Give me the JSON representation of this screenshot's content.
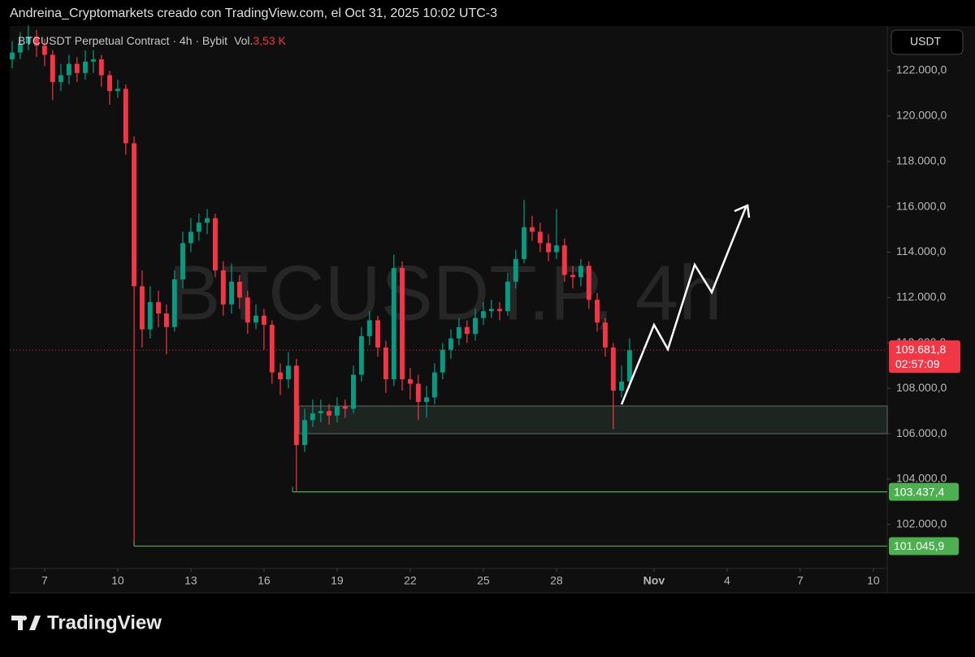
{
  "chart_data": {
    "type": "candlestick",
    "header": "Andreina_Cryptomarkets creado con TradingView.com, el Oct 31, 2025 10:02 UTC-3",
    "symbol": "BTCUSDT Perpetual Contract · 4h · Bybit",
    "volume_label": "Vol.",
    "volume": "3,53 K",
    "watermark": "BTCUSDT.P, 4h",
    "currency": "USDT",
    "brand": "TradingView",
    "up_color": "#089981",
    "down_color": "#f23645",
    "x": [
      5.67,
      6,
      6.33,
      6.67,
      7,
      7.33,
      7.67,
      8,
      8.33,
      8.67,
      9,
      9.33,
      9.67,
      10,
      10.33,
      10.67,
      11,
      11.33,
      11.67,
      12,
      12.33,
      12.67,
      13,
      13.33,
      13.67,
      14,
      14.33,
      14.67,
      15,
      15.33,
      15.67,
      16,
      16.33,
      16.67,
      17,
      17.33,
      17.67,
      18,
      18.33,
      18.67,
      19,
      19.33,
      19.67,
      20,
      20.33,
      20.67,
      21,
      21.33,
      21.67,
      22,
      22.33,
      22.67,
      23,
      23.33,
      23.67,
      24,
      24.33,
      24.67,
      25,
      25.33,
      25.67,
      26,
      26.33,
      26.67,
      27,
      27.33,
      27.67,
      28,
      28.33,
      28.67,
      29,
      29.33,
      29.67,
      30,
      30.33,
      30.67,
      31
    ],
    "open": [
      122500,
      122800,
      123200,
      123500,
      123100,
      122700,
      121500,
      121800,
      122300,
      121900,
      122400,
      122500,
      121800,
      121100,
      121200,
      118800,
      112500,
      110600,
      111800,
      111300,
      110700,
      112800,
      114400,
      114900,
      115300,
      115500,
      113200,
      111700,
      112700,
      112000,
      110900,
      111200,
      110800,
      108700,
      108400,
      109000,
      105500,
      106600,
      106900,
      107000,
      106800,
      107200,
      107100,
      108600,
      110300,
      111000,
      109800,
      108400,
      113300,
      108400,
      108200,
      107400,
      107600,
      108700,
      109700,
      110200,
      110700,
      110400,
      111100,
      111400,
      111500,
      111400,
      112700,
      113700,
      115100,
      114900,
      114400,
      114000,
      114300,
      113000,
      112900,
      113400,
      111900,
      110900,
      109800,
      107900,
      108300
    ],
    "high": [
      123300,
      123700,
      124000,
      123800,
      123400,
      122900,
      122300,
      122700,
      122600,
      122900,
      122900,
      122700,
      122000,
      121600,
      121400,
      119100,
      113200,
      112500,
      112300,
      111700,
      113200,
      114900,
      115500,
      115700,
      115900,
      115700,
      113600,
      113500,
      113000,
      112300,
      111700,
      111500,
      111000,
      109100,
      109600,
      109300,
      107100,
      107500,
      107500,
      107300,
      107600,
      107500,
      109000,
      110700,
      111400,
      111200,
      110100,
      113900,
      113600,
      108900,
      108600,
      108100,
      109100,
      110000,
      110600,
      111100,
      111000,
      111500,
      111800,
      111900,
      111800,
      113100,
      114100,
      116300,
      115600,
      115300,
      114800,
      115900,
      114600,
      113400,
      113700,
      113600,
      112200,
      111100,
      110000,
      109000,
      110200
    ],
    "low": [
      122100,
      122500,
      122900,
      122600,
      122200,
      120700,
      121100,
      121400,
      121500,
      121600,
      121900,
      121300,
      120500,
      120800,
      118300,
      101045.9,
      109800,
      110200,
      110700,
      109500,
      110500,
      112400,
      114000,
      114500,
      114800,
      112900,
      111200,
      111300,
      111500,
      110400,
      110600,
      109700,
      108200,
      107700,
      108000,
      103437.4,
      105200,
      106300,
      106500,
      106400,
      106500,
      106700,
      106900,
      108300,
      109900,
      109400,
      107800,
      108100,
      107900,
      107500,
      106600,
      106700,
      107300,
      108400,
      109300,
      109900,
      110000,
      110100,
      110800,
      111100,
      111000,
      111200,
      112400,
      113500,
      114500,
      114000,
      113600,
      113700,
      112700,
      112400,
      112500,
      111500,
      110500,
      109400,
      106200,
      107600,
      108000
    ],
    "close": [
      122800,
      123200,
      123500,
      123100,
      122700,
      121500,
      121800,
      122300,
      121900,
      122400,
      122500,
      121800,
      121100,
      121200,
      118800,
      112500,
      110600,
      111800,
      111300,
      110700,
      112800,
      114400,
      114900,
      115300,
      115500,
      113200,
      111700,
      112700,
      112000,
      110900,
      111200,
      110800,
      108700,
      108400,
      109000,
      105500,
      106600,
      106900,
      107000,
      106800,
      107200,
      107100,
      108600,
      110300,
      111000,
      109800,
      108400,
      113300,
      108400,
      108200,
      107400,
      107600,
      108700,
      109700,
      110200,
      110700,
      110400,
      111100,
      111400,
      111500,
      111400,
      112700,
      113700,
      115100,
      114900,
      114400,
      114000,
      114300,
      113000,
      112900,
      113400,
      111900,
      110900,
      109800,
      107900,
      108300,
      109681.8
    ],
    "xlim": [
      5.57,
      41.57
    ],
    "xticks": [
      7,
      10,
      13,
      16,
      19,
      22,
      25,
      28,
      {
        "value": 32,
        "label": "Nov"
      },
      {
        "value": 35,
        "label": "4"
      },
      {
        "value": 38,
        "label": "7"
      },
      {
        "value": 41,
        "label": "10"
      }
    ],
    "ylim": [
      100060,
      123970
    ],
    "yticks": [
      {
        "value": 102000,
        "label": "102.000,0"
      },
      {
        "value": 104000,
        "label": "104.000,0"
      },
      {
        "value": 106000,
        "label": "106.000,0"
      },
      {
        "value": 108000,
        "label": "108.000,0"
      },
      {
        "value": 110000,
        "label": "110.000,0"
      },
      {
        "value": 112000,
        "label": "112.000,0"
      },
      {
        "value": 114000,
        "label": "114.000,0"
      },
      {
        "value": 116000,
        "label": "116.000,0"
      },
      {
        "value": 118000,
        "label": "118.000,0"
      },
      {
        "value": 120000,
        "label": "120.000,0"
      },
      {
        "value": 122000,
        "label": "122.000,0"
      }
    ],
    "current_price": {
      "value": 109681.8,
      "label": "109.681,8",
      "countdown": "02:57:09",
      "color": "#f23645"
    },
    "price_lines": [
      {
        "value": 103437.4,
        "label": "103.437,4",
        "start": 17.17,
        "color": "#4caf50"
      },
      {
        "value": 101045.9,
        "label": "101.045,9",
        "start": 10.67,
        "color": "#4caf50"
      }
    ]
  }
}
